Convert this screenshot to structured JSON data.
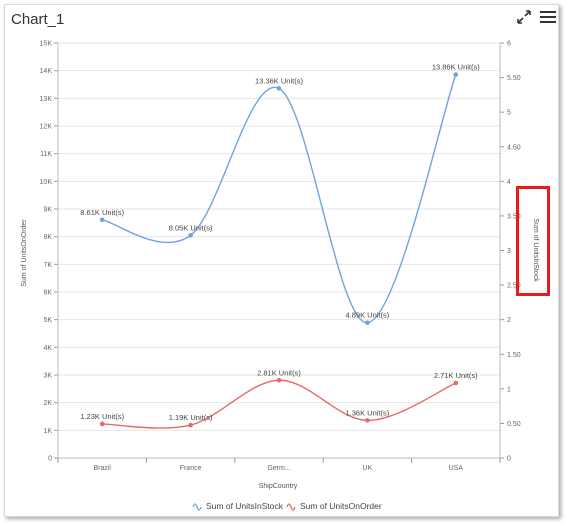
{
  "header": {
    "title": "Chart_1",
    "expand_icon": "expand-arrows-icon",
    "menu_icon": "hamburger-menu-icon"
  },
  "colors": {
    "units_in_stock": "#6fa3e0",
    "units_on_order": "#e46a65",
    "highlight": "#e81c1c"
  },
  "chart_data": {
    "type": "line",
    "interpolation": "spline",
    "categories": [
      "Brazil",
      "France",
      "Germ...",
      "UK",
      "USA"
    ],
    "xlabel": "ShipCountry",
    "ylabel": "Sum of UnitsOnOrder",
    "y2label": "Sum of UnitsInStock",
    "ylim": [
      0,
      15000
    ],
    "y2lim": [
      0,
      6
    ],
    "y_ticks": [
      "0",
      "1K",
      "2K",
      "3K",
      "4K",
      "5K",
      "6K",
      "7K",
      "8K",
      "9K",
      "10K",
      "11K",
      "12K",
      "13K",
      "14K",
      "15K"
    ],
    "y2_ticks": [
      "0",
      "0.50",
      "1",
      "1.50",
      "2",
      "2.50",
      "3",
      "3.50",
      "4",
      "4.50",
      "5",
      "5.50",
      "6"
    ],
    "grid": true,
    "legend_position": "bottom",
    "series": [
      {
        "name": "Sum of UnitsInStock",
        "color": "#6fa3e0",
        "values": [
          8610,
          8050,
          13360,
          4890,
          13860
        ],
        "labels": [
          "8.61K Unit(s)",
          "8.05K Unit(s)",
          "13.36K Unit(s)",
          "4.89K Unit(s)",
          "13.86K Unit(s)"
        ]
      },
      {
        "name": "Sum of UnitsOnOrder",
        "color": "#e46a65",
        "values": [
          1230,
          1190,
          2810,
          1360,
          2710
        ],
        "labels": [
          "1.23K Unit(s)",
          "1.19K Unit(s)",
          "2.81K Unit(s)",
          "1.36K Unit(s)",
          "2.71K Unit(s)"
        ]
      }
    ]
  }
}
